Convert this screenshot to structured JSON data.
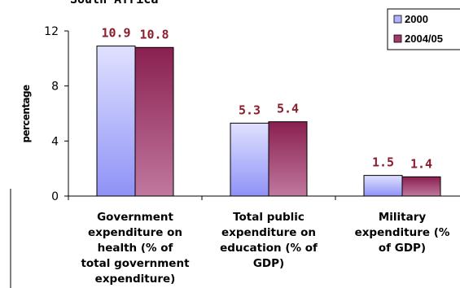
{
  "chart_data": {
    "type": "bar",
    "title": "South Africa",
    "ylabel": "percentage",
    "xlabel": "",
    "ylim": [
      0,
      12
    ],
    "yticks": [
      0,
      4,
      8,
      12
    ],
    "categories": [
      [
        "Government",
        "expenditure on",
        "health (% of",
        "total government",
        "expenditure)"
      ],
      [
        "Total public",
        "expenditure on",
        "education (% of",
        "GDP)"
      ],
      [
        "Military",
        "expenditure (%",
        "of GDP)"
      ]
    ],
    "series": [
      {
        "name": "2000",
        "values": [
          10.9,
          5.3,
          1.5
        ]
      },
      {
        "name": "2004/05",
        "values": [
          10.8,
          5.4,
          1.4
        ]
      }
    ],
    "value_labels": [
      [
        "10.9",
        "5.3",
        "1.5"
      ],
      [
        "10.8",
        "5.4",
        "1.4"
      ]
    ],
    "legend_position": "top-right",
    "grid": false,
    "colors": {
      "series_2000": "#b0b2ff",
      "series_2004": "#a23a6a",
      "value_label": "#8b1e2e"
    }
  }
}
